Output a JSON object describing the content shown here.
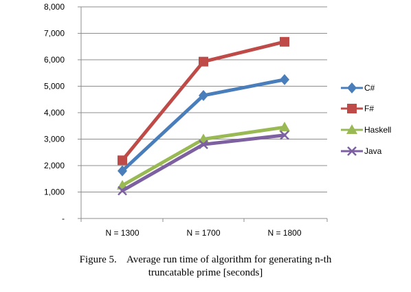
{
  "chart_data": {
    "type": "line",
    "categories": [
      "N = 1300",
      "N = 1700",
      "N = 1800"
    ],
    "ylim": [
      0,
      8000
    ],
    "yticks": [
      {
        "value": 0,
        "label": "-"
      },
      {
        "value": 1000,
        "label": "1,000"
      },
      {
        "value": 2000,
        "label": "2,000"
      },
      {
        "value": 3000,
        "label": "3,000"
      },
      {
        "value": 4000,
        "label": "4,000"
      },
      {
        "value": 5000,
        "label": "5,000"
      },
      {
        "value": 6000,
        "label": "6,000"
      },
      {
        "value": 7000,
        "label": "7,000"
      },
      {
        "value": 8000,
        "label": "8,000"
      }
    ],
    "grid": true,
    "legend_position": "right",
    "series": [
      {
        "name": "C#",
        "values": [
          1800,
          4650,
          5250
        ],
        "color": "#4a7ebb",
        "marker": "diamond"
      },
      {
        "name": "F#",
        "values": [
          2200,
          5930,
          6680
        ],
        "color": "#be4b48",
        "marker": "square"
      },
      {
        "name": "Haskell",
        "values": [
          1250,
          3000,
          3450
        ],
        "color": "#98b954",
        "marker": "triangle"
      },
      {
        "name": "Java",
        "values": [
          1050,
          2800,
          3150
        ],
        "color": "#7d60a0",
        "marker": "x"
      }
    ]
  },
  "caption": {
    "line1": "Figure 5.    Average run time of algorithm for generating n-th",
    "line2": "truncatable prime [seconds]"
  }
}
